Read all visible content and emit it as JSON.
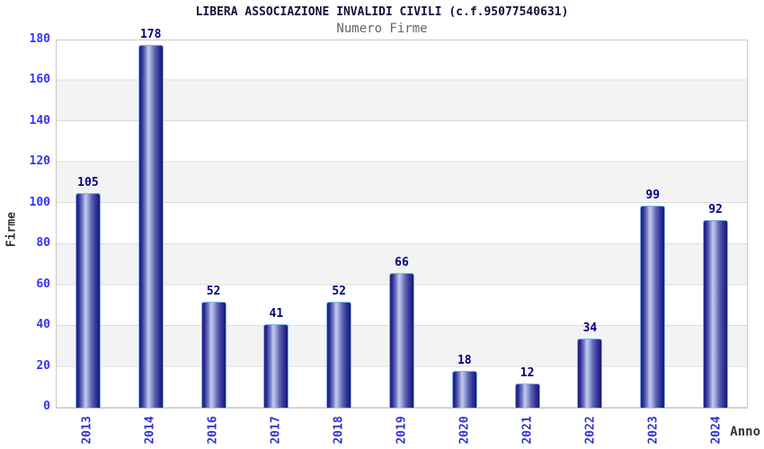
{
  "header": {
    "title": "LIBERA ASSOCIAZIONE INVALIDI CIVILI (c.f.95077540631)",
    "subtitle": "Numero Firme"
  },
  "chart_data": {
    "type": "bar",
    "title": "LIBERA ASSOCIAZIONE INVALIDI CIVILI (c.f.95077540631)",
    "subtitle": "Numero Firme",
    "categories": [
      "2013",
      "2014",
      "2016",
      "2017",
      "2018",
      "2019",
      "2020",
      "2021",
      "2022",
      "2023",
      "2024"
    ],
    "values": [
      105,
      178,
      52,
      41,
      52,
      66,
      18,
      12,
      34,
      99,
      92
    ],
    "xlabel": "Anno",
    "ylabel": "Firme",
    "ylim": [
      0,
      180
    ],
    "y_ticks": [
      0,
      20,
      40,
      60,
      80,
      100,
      120,
      140,
      160,
      180
    ],
    "grid": "horizontal gridlines every 20 with alternating white/gray bands",
    "legend": "none",
    "bar_labels_shown": true
  },
  "colors": {
    "title_text": "#10103a",
    "subtitle_text": "#666666",
    "axis_title_text": "#333333",
    "y_tick_text": "#3333ff",
    "x_tick_text": "#3333cc",
    "bar_value_text": "#000080",
    "bar_dark": "#1f1f86",
    "bar_highlight": "#c2cbec",
    "bar_border": "#7fb3e8",
    "band_gray": "#f3f3f3",
    "gridline": "#dcdcdc",
    "plot_border": "#c8c8c8",
    "background": "#ffffff"
  }
}
